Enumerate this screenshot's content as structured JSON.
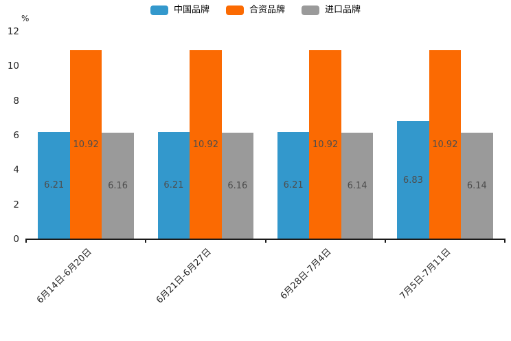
{
  "chart_data": {
    "type": "bar",
    "title": "",
    "xlabel": "",
    "ylabel": "%",
    "ylim": [
      0,
      12
    ],
    "yticks": [
      0,
      2,
      4,
      6,
      8,
      10,
      12
    ],
    "grid": false,
    "legend_position": "top",
    "value_labels": true,
    "categories": [
      "6月14日-6月20日",
      "6月21日-6月27日",
      "6月28日-7月4日",
      "7月5日-7月11日"
    ],
    "series": [
      {
        "name": "中国品牌",
        "color": "#3398CC",
        "values": [
          6.21,
          6.21,
          6.21,
          6.83
        ]
      },
      {
        "name": "合资品牌",
        "color": "#FB6A02",
        "values": [
          10.92,
          10.92,
          10.92,
          10.92
        ]
      },
      {
        "name": "进口品牌",
        "color": "#9A9A9A",
        "values": [
          6.16,
          6.16,
          6.14,
          6.14
        ]
      }
    ]
  },
  "colors": {
    "background": "#FFFFFF",
    "axis": "#1A1A1A",
    "tick_label": "#262626",
    "value_label": "#4D4D4D"
  }
}
